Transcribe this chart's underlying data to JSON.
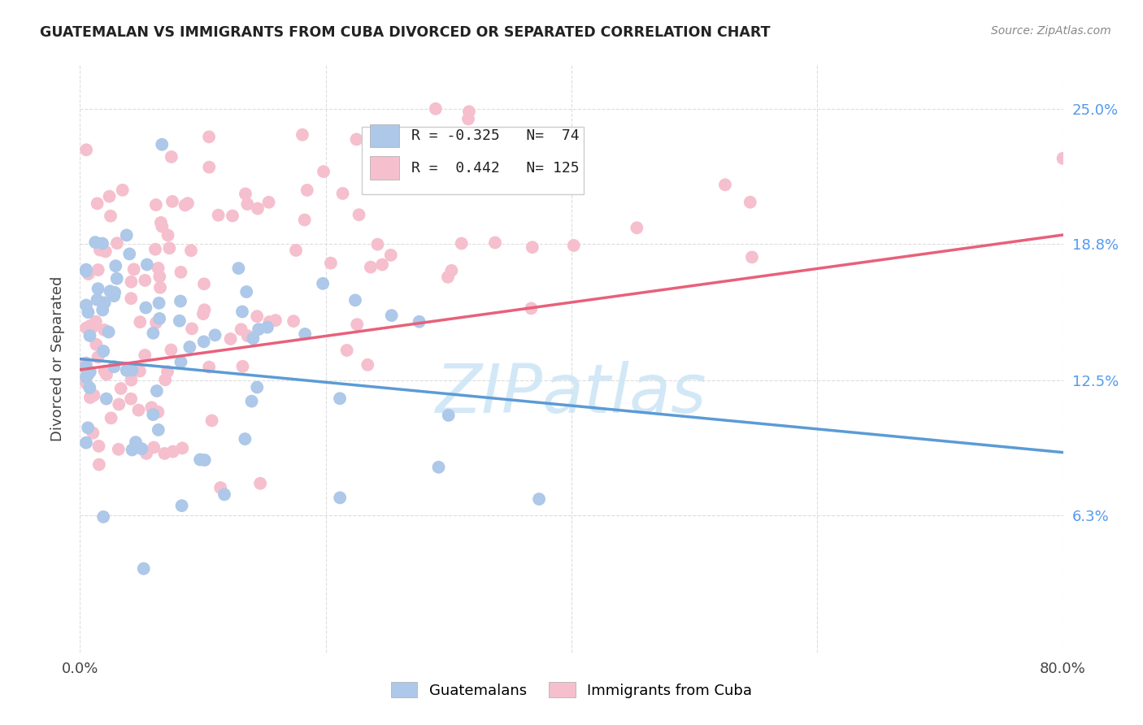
{
  "title": "GUATEMALAN VS IMMIGRANTS FROM CUBA DIVORCED OR SEPARATED CORRELATION CHART",
  "source": "Source: ZipAtlas.com",
  "ylabel": "Divorced or Separated",
  "xlim": [
    0.0,
    0.8
  ],
  "ylim": [
    0.0,
    0.27
  ],
  "ytick_vals": [
    0.063,
    0.125,
    0.188,
    0.25
  ],
  "ytick_labels": [
    "6.3%",
    "12.5%",
    "18.8%",
    "25.0%"
  ],
  "xtick_vals": [
    0.0,
    0.2,
    0.4,
    0.6,
    0.8
  ],
  "xtick_labels": [
    "0.0%",
    "",
    "",
    "",
    "80.0%"
  ],
  "blue_R": -0.325,
  "blue_N": 74,
  "pink_R": 0.442,
  "pink_N": 125,
  "blue_scatter_color": "#adc8e8",
  "pink_scatter_color": "#f5bfce",
  "blue_line_color": "#5b9bd5",
  "pink_line_color": "#e8607a",
  "blue_line_y0": 0.135,
  "blue_line_y1": 0.092,
  "pink_line_y0": 0.13,
  "pink_line_y1": 0.192,
  "watermark_text": "ZIPatlas",
  "watermark_color": "#cce5f5",
  "legend_label_blue": "Guatemalans",
  "legend_label_pink": "Immigrants from Cuba",
  "grid_color": "#dddddd",
  "title_color": "#222222",
  "source_color": "#888888",
  "ylabel_color": "#444444",
  "right_tick_color": "#5599ee"
}
